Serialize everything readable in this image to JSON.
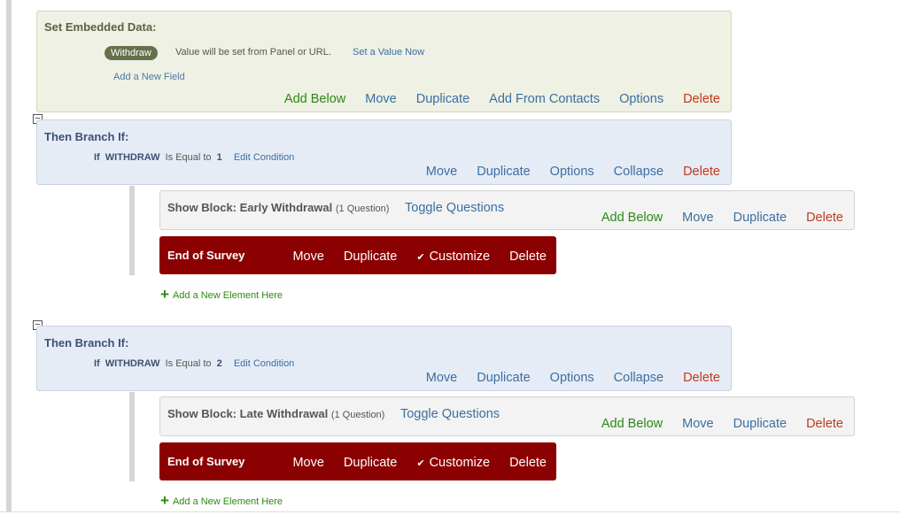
{
  "embedded": {
    "title": "Set Embedded Data:",
    "field_name": "Withdraw",
    "field_value": "Value will be set from Panel or URL.",
    "set_value": "Set a Value Now",
    "add_field": "Add a New Field",
    "actions": [
      "Add Below",
      "Move",
      "Duplicate",
      "Add From Contacts",
      "Options",
      "Delete"
    ]
  },
  "branches": [
    {
      "title": "Then Branch If:",
      "cond_if": "If",
      "cond_field": "WITHDRAW",
      "cond_op": "Is Equal to",
      "cond_value": "1",
      "edit": "Edit Condition",
      "actions": [
        "Move",
        "Duplicate",
        "Options",
        "Collapse",
        "Delete"
      ],
      "block": {
        "title": "Show Block: Early Withdrawal",
        "count": "(1 Question)",
        "toggle": "Toggle Questions",
        "actions": [
          "Add Below",
          "Move",
          "Duplicate",
          "Delete"
        ]
      },
      "end": {
        "title": "End of Survey",
        "actions": [
          "Move",
          "Duplicate",
          "Customize",
          "Delete"
        ]
      },
      "add_element": "Add a New Element Here"
    },
    {
      "title": "Then Branch If:",
      "cond_if": "If",
      "cond_field": "WITHDRAW",
      "cond_op": "Is Equal to",
      "cond_value": "2",
      "edit": "Edit Condition",
      "actions": [
        "Move",
        "Duplicate",
        "Options",
        "Collapse",
        "Delete"
      ],
      "block": {
        "title": "Show Block: Late Withdrawal",
        "count": "(1 Question)",
        "toggle": "Toggle Questions",
        "actions": [
          "Add Below",
          "Move",
          "Duplicate",
          "Delete"
        ]
      },
      "end": {
        "title": "End of Survey",
        "actions": [
          "Move",
          "Duplicate",
          "Customize",
          "Delete"
        ]
      },
      "add_element": "Add a New Element Here"
    }
  ]
}
